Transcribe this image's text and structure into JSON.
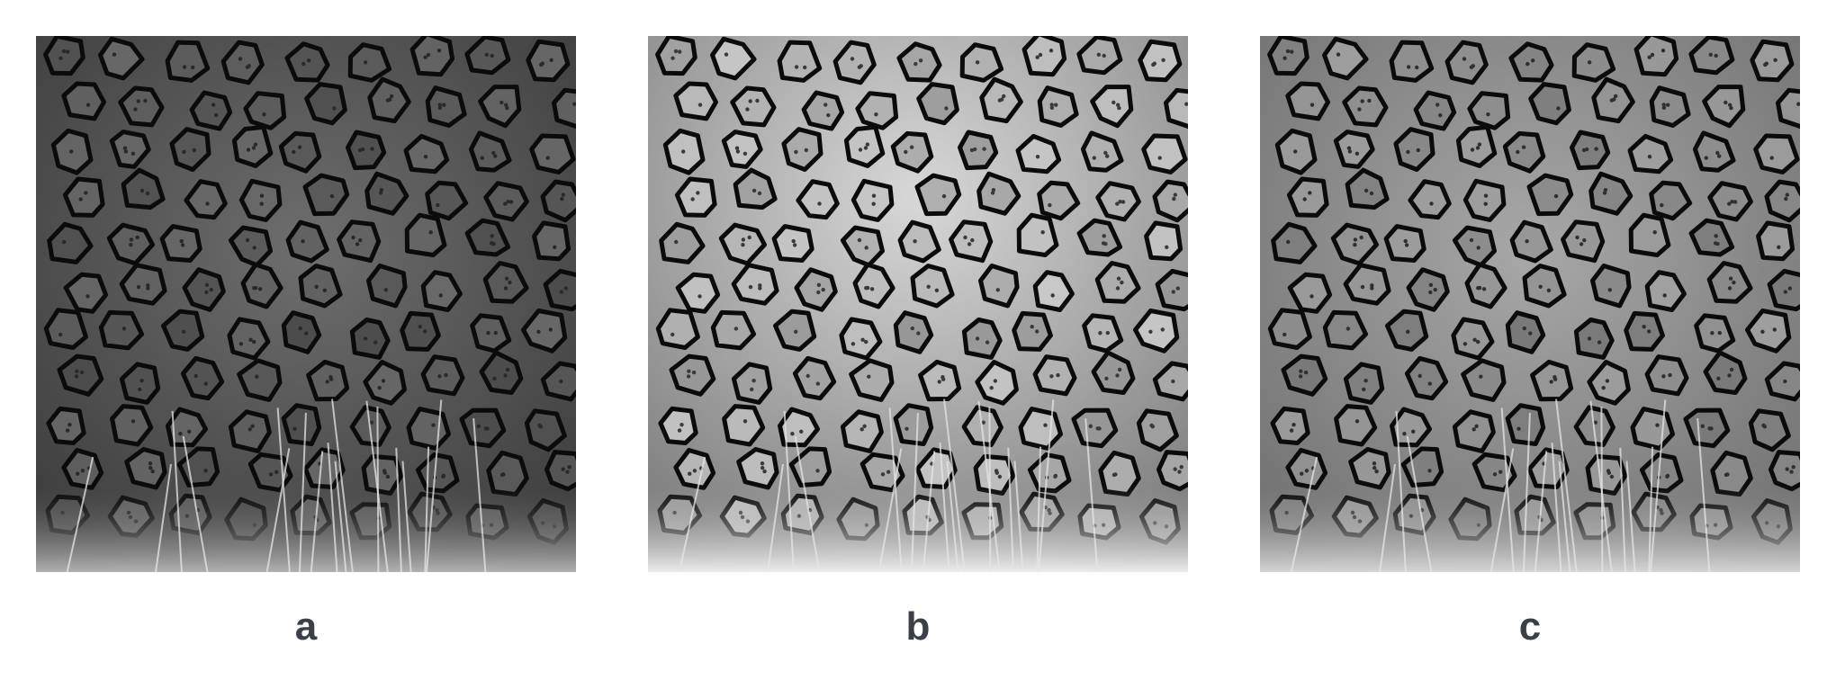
{
  "panels": [
    {
      "label": "a",
      "variant": "original",
      "tone": "dark"
    },
    {
      "label": "b",
      "variant": "contrast-enhanced",
      "tone": "bright"
    },
    {
      "label": "c",
      "variant": "locally-equalized",
      "tone": "balanced"
    }
  ],
  "colors": {
    "background": "#ffffff",
    "caption": "#3b3f47",
    "crack_dark": "#0b0b0b"
  }
}
